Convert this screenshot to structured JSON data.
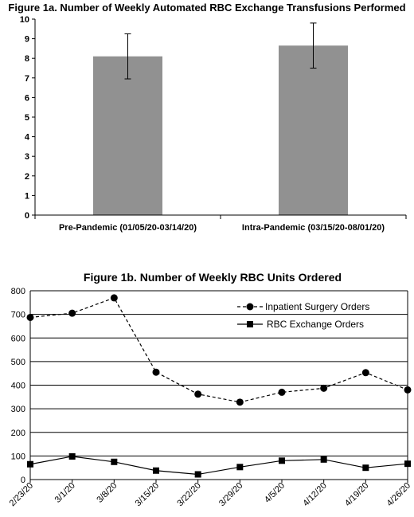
{
  "chart_data": [
    {
      "type": "bar",
      "title": "Figure 1a. Number of Weekly Automated RBC Exchange Transfusions Performed",
      "categories": [
        "Pre-Pandemic (01/05/20-03/14/20)",
        "Intra-Pandemic (03/15/20-08/01/20)"
      ],
      "values": [
        8.1,
        8.65
      ],
      "error": [
        1.15,
        1.15
      ],
      "ylim": [
        0,
        10
      ],
      "yticks": [
        "0",
        "1",
        "2",
        "3",
        "4",
        "5",
        "6",
        "7",
        "8",
        "9",
        "10"
      ],
      "bar_color": "#919191",
      "grid": false
    },
    {
      "type": "line",
      "title": "Figure 1b. Number of Weekly RBC Units Ordered",
      "categories": [
        "2/23/20",
        "3/1/20",
        "3/8/20",
        "3/15/20",
        "3/22/20",
        "3/29/20",
        "4/5/20",
        "4/12/20",
        "4/19/20",
        "4/26/20"
      ],
      "series": [
        {
          "name": "Inpatient Surgery Orders",
          "values": [
            687,
            705,
            770,
            455,
            362,
            328,
            370,
            387,
            453,
            380
          ],
          "marker": "circle",
          "dashed": true
        },
        {
          "name": "RBC Exchange Orders",
          "values": [
            65,
            98,
            75,
            38,
            22,
            53,
            80,
            85,
            50,
            67
          ],
          "marker": "square",
          "dashed": false
        }
      ],
      "ylim": [
        0,
        800
      ],
      "yticks": [
        "0",
        "100",
        "200",
        "300",
        "400",
        "500",
        "600",
        "700",
        "800"
      ],
      "legend": "top-right",
      "grid": true
    }
  ]
}
